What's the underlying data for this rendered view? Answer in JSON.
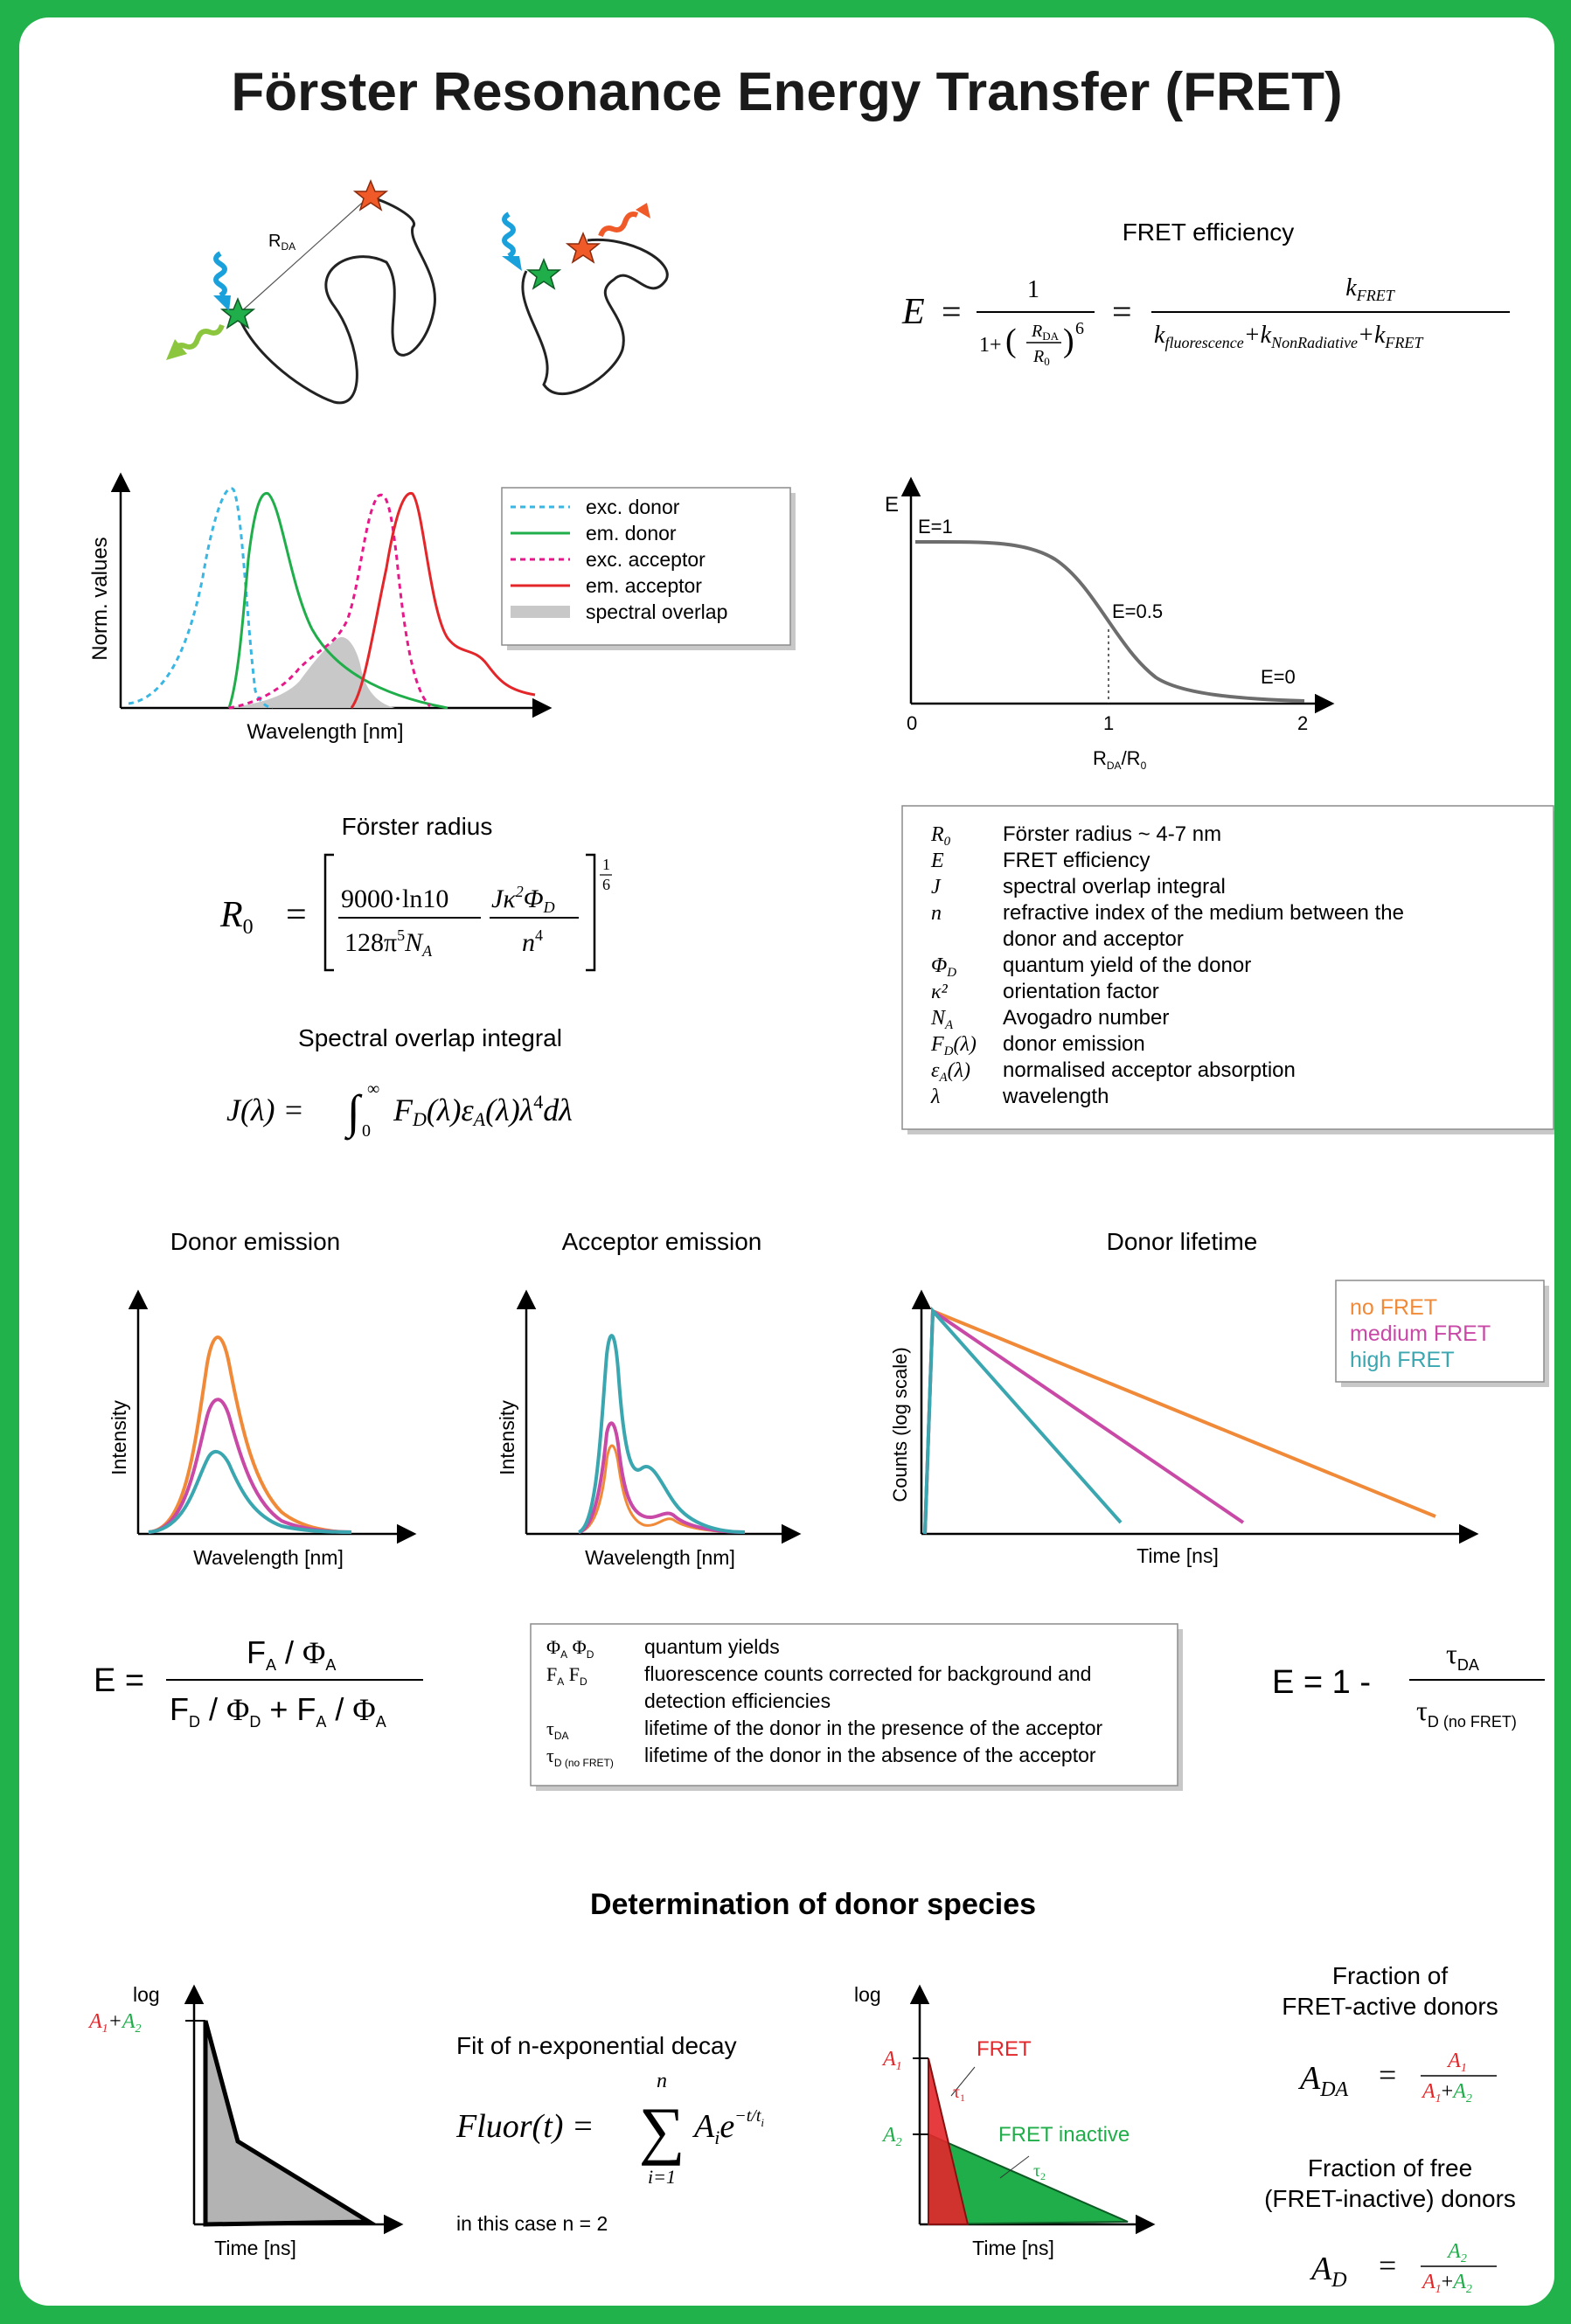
{
  "title": "Förster Resonance Energy Transfer (FRET)",
  "schematic": {
    "distance_label": "R",
    "distance_sub": "DA"
  },
  "fret_efficiency": {
    "heading": "FRET efficiency",
    "lhs": "E",
    "eq": "=",
    "num1": "1",
    "den1_start": "1+",
    "ratio_num_main": "R",
    "ratio_num_sub": "DA",
    "ratio_den_main": "R",
    "ratio_den_sub": "0",
    "exponent": "6",
    "num2_main": "k",
    "num2_sub": "FRET",
    "den2_k1": "k",
    "den2_s1": "fluorescence",
    "den2_k2": "+k",
    "den2_s2": "NonRadiative",
    "den2_k3": "+k",
    "den2_s3": "FRET"
  },
  "spectra_chart": {
    "ylabel": "Norm. values",
    "xlabel": "Wavelength [nm]",
    "legend": [
      "exc. donor",
      "em. donor",
      "exc. acceptor",
      "em. acceptor",
      "spectral overlap"
    ],
    "colors": {
      "exc_donor": "#3ab6e3",
      "em_donor": "#1fae4a",
      "exc_acceptor": "#e6198a",
      "em_acceptor": "#e3262a",
      "overlap": "#c8c8c8"
    }
  },
  "efficiency_curve": {
    "ylabel": "E",
    "xlabel_main": "R",
    "xlabel_sub1": "DA",
    "xlabel_mid": "/R",
    "xlabel_sub2": "0",
    "ticks": [
      "0",
      "1",
      "2"
    ],
    "annotations": [
      "E=1",
      "E=0.5",
      "E=0"
    ]
  },
  "forster_radius": {
    "heading": "Förster radius",
    "lhs_main": "R",
    "lhs_sub": "0",
    "num1": "9000·ln10",
    "den1_main": "128π",
    "den1_sup": "5",
    "den1_N": "N",
    "den1_Nsub": "A",
    "num2_J": "Jκ",
    "num2_sup": "2",
    "num2_phi": "Φ",
    "num2_sub": "D",
    "den2_main": "n",
    "den2_sup": "4",
    "power_num": "1",
    "power_den": "6"
  },
  "overlap_integral": {
    "heading": "Spectral overlap integral",
    "lhs": "J(λ) =",
    "lower": "0",
    "upper": "∞",
    "body_F": "F",
    "body_Fsub": "D",
    "body_mid": "(λ)ε",
    "body_esub": "A",
    "body_end": "(λ)λ",
    "body_sup": "4",
    "body_tail": "dλ"
  },
  "symbols_table": [
    {
      "sym_main": "R",
      "sym_sub": "0",
      "sym_rest": "",
      "desc": "Förster radius ~ 4-7 nm"
    },
    {
      "sym_main": "E",
      "sym_sub": "",
      "sym_rest": "",
      "desc": "FRET efficiency"
    },
    {
      "sym_main": "J",
      "sym_sub": "",
      "sym_rest": "",
      "desc": "spectral overlap integral"
    },
    {
      "sym_main": "n",
      "sym_sub": "",
      "sym_rest": "",
      "desc": "refractive index of the medium between the"
    },
    {
      "sym_main": "",
      "sym_sub": "",
      "sym_rest": "",
      "desc": "donor and acceptor"
    },
    {
      "sym_main": "Φ",
      "sym_sub": "D",
      "sym_rest": "",
      "desc": "quantum yield of the donor"
    },
    {
      "sym_main": "κ²",
      "sym_sub": "",
      "sym_rest": "",
      "desc": "orientation  factor"
    },
    {
      "sym_main": "N",
      "sym_sub": "A",
      "sym_rest": "",
      "desc": "Avogadro number"
    },
    {
      "sym_main": "F",
      "sym_sub": "D",
      "sym_rest": "(λ)",
      "desc": "donor emission"
    },
    {
      "sym_main": "ε",
      "sym_sub": "A",
      "sym_rest": "(λ)",
      "desc": "normalised acceptor absorption"
    },
    {
      "sym_main": "λ",
      "sym_sub": "",
      "sym_rest": "",
      "desc": "wavelength"
    }
  ],
  "donor_emission": {
    "heading": "Donor emission",
    "ylabel": "Intensity",
    "xlabel": "Wavelength [nm]"
  },
  "acceptor_emission": {
    "heading": "Acceptor emission",
    "ylabel": "Intensity",
    "xlabel": "Wavelength [nm]"
  },
  "donor_lifetime": {
    "heading": "Donor lifetime",
    "ylabel": "Counts (log scale)",
    "xlabel": "Time [ns]",
    "legend": [
      "no FRET",
      "medium FRET",
      "high FRET"
    ],
    "colors": {
      "no": "#f08a38",
      "medium": "#c84aa6",
      "high": "#3aa6b0"
    }
  },
  "intensity_formula": {
    "lhs": "E =",
    "num_F": "F",
    "num_Fsub": "A",
    "num_slash": " / ",
    "num_phi": "Φ",
    "num_phisub": "A",
    "den_F1": "F",
    "den_F1sub": "D",
    "den_slash1": " / ",
    "den_phi1": "Φ",
    "den_phi1sub": "D",
    "den_plus": " + ",
    "den_F2": "F",
    "den_F2sub": "A",
    "den_slash2": " / ",
    "den_phi2": "Φ",
    "den_phi2sub": "A"
  },
  "legend_table": [
    {
      "sym": "Φ",
      "sub": "A",
      "sym2": " Φ",
      "sub2": "D",
      "desc": "quantum yields"
    },
    {
      "sym": "F",
      "sub": "A",
      "sym2": "  F",
      "sub2": "D",
      "desc": "fluorescence counts corrected for background and"
    },
    {
      "sym": "",
      "sub": "",
      "sym2": "",
      "sub2": "",
      "desc": "detection efficiencies"
    },
    {
      "sym": "τ",
      "sub": "DA",
      "sym2": "",
      "sub2": "",
      "desc": "lifetime of the donor in the presence of the acceptor"
    },
    {
      "sym": "τ",
      "sub": "D (no FRET)",
      "sym2": "",
      "sub2": "",
      "desc": "lifetime of the donor in the absence of the acceptor"
    }
  ],
  "lifetime_formula": {
    "lhs": "E = 1 -",
    "num": "τ",
    "num_sub": "DA",
    "den": "τ",
    "den_sub": "D (no FRET)"
  },
  "species": {
    "heading": "Determination of donor species",
    "decay_plot": {
      "ylabel": "log",
      "xlabel": "Time [ns]",
      "label_A1": "A",
      "label_A1sub": "1",
      "label_plus": "+",
      "label_A2": "A",
      "label_A2sub": "2"
    },
    "fit_heading": "Fit of n-exponential decay",
    "fit_lhs": "Fluor(t) =",
    "fit_sum": "∑",
    "fit_top": "n",
    "fit_bottom": "i=1",
    "fit_term": "A",
    "fit_term_sub": "i",
    "fit_e": "e",
    "fit_exp": "−t/t",
    "fit_exp_sub": "i",
    "fit_note": "in this case n =  2",
    "split_plot": {
      "ylabel": "log",
      "xlabel": "Time [ns]",
      "A1": "A",
      "A1sub": "1",
      "A2": "A",
      "A2sub": "2",
      "fret_label": "FRET",
      "tau1": "τ",
      "tau1sub": "1",
      "inactive_label": "FRET inactive",
      "tau2": "τ",
      "tau2sub": "2"
    },
    "fraction_active": {
      "heading_line1": "Fraction of",
      "heading_line2": "FRET-active donors",
      "lhs": "A",
      "lhs_sub": "DA",
      "eq": "=",
      "num": "A",
      "num_sub": "1",
      "den1": "A",
      "den1_sub": "1",
      "den_plus": "+",
      "den2": "A",
      "den2_sub": "2"
    },
    "fraction_free": {
      "heading_line1": "Fraction of free",
      "heading_line2": "(FRET-inactive) donors",
      "lhs": "A",
      "lhs_sub": "D",
      "eq": "=",
      "num": "A",
      "num_sub": "2",
      "den1": "A",
      "den1_sub": "1",
      "den_plus": "+",
      "den2": "A",
      "den2_sub": "2"
    }
  }
}
